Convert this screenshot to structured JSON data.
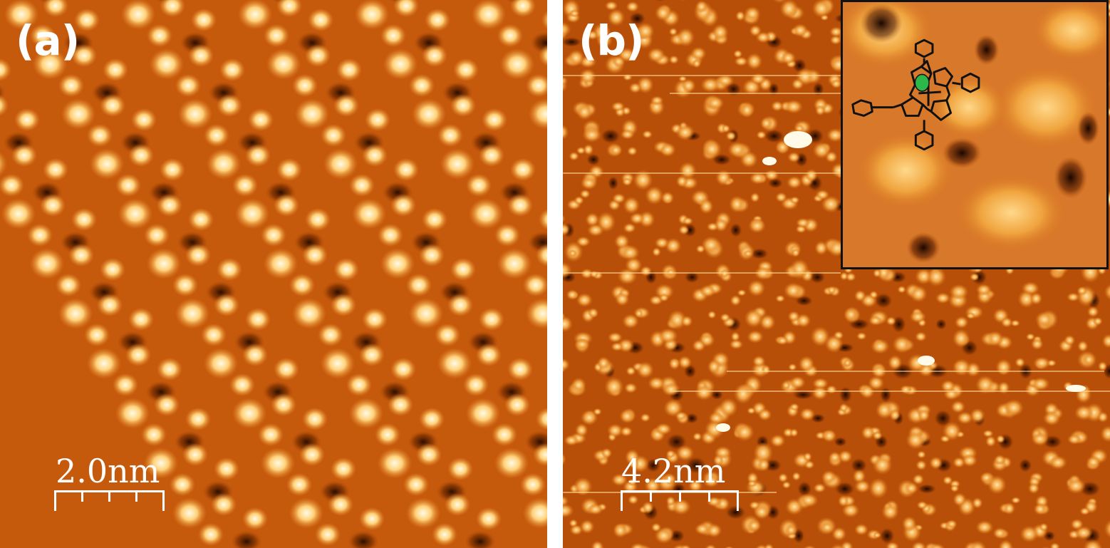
{
  "panels": [
    {
      "label": "(a)",
      "scale_bar": {
        "text": "2.0nm",
        "ticks": 5
      }
    },
    {
      "label": "(b)",
      "scale_bar": {
        "text": "4.2nm",
        "ticks": 5
      },
      "inset": {
        "overlay": "molecular-structure-diagram",
        "highlight_color": "#2db84a"
      }
    }
  ],
  "colors": {
    "background": "#c85a0a",
    "bright": "#fff6d8",
    "dark": "#3a1400",
    "divider": "#ffffff"
  }
}
